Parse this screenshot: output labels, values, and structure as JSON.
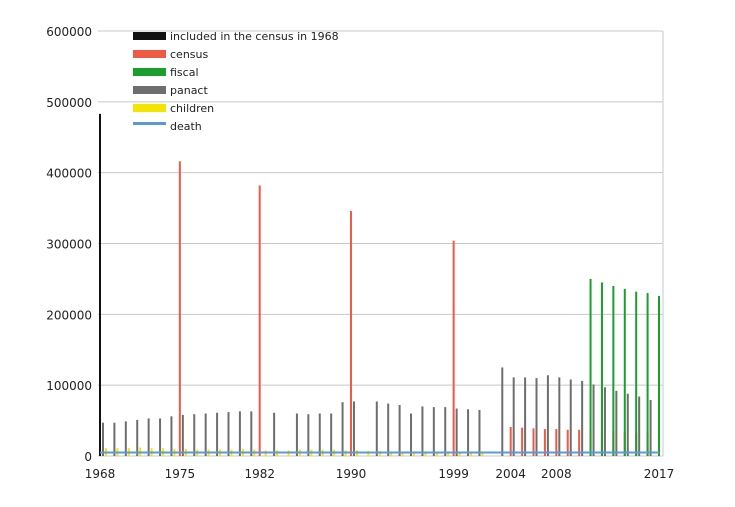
{
  "chart_data": {
    "type": "bar",
    "title": "",
    "xlabel": "",
    "ylabel": "",
    "ylim": [
      0,
      600000
    ],
    "xlim": [
      1968,
      2017
    ],
    "yticks": [
      "0",
      "100000",
      "200000",
      "300000",
      "400000",
      "500000",
      "600000"
    ],
    "xticks": [
      {
        "year": 1968,
        "label": "1968"
      },
      {
        "year": 1975,
        "label": "1975"
      },
      {
        "year": 1982,
        "label": "1982"
      },
      {
        "year": 1990,
        "label": "1990"
      },
      {
        "year": 1999,
        "label": "1999"
      },
      {
        "year": 2004,
        "label": "2004"
      },
      {
        "year": 2008,
        "label": "2008"
      },
      {
        "year": 2017,
        "label": "2017"
      }
    ],
    "grid": true,
    "legend_position": "top-left",
    "series": [
      {
        "name": "included in the census in 1968",
        "color": "#111111",
        "points": [
          [
            1968,
            483000
          ]
        ]
      },
      {
        "name": "census",
        "color": "#f05a45",
        "points": [
          [
            1975,
            416000
          ],
          [
            1982,
            382000
          ],
          [
            1990,
            346000
          ],
          [
            1999,
            304000
          ],
          [
            2004,
            41000
          ],
          [
            2005,
            40000
          ],
          [
            2006,
            39000
          ],
          [
            2007,
            38000
          ],
          [
            2008,
            38000
          ],
          [
            2009,
            37000
          ],
          [
            2010,
            37000
          ],
          [
            2011,
            36000
          ],
          [
            2012,
            35000
          ],
          [
            2013,
            35000
          ],
          [
            2014,
            34000
          ],
          [
            2015,
            33000
          ],
          [
            2016,
            32000
          ],
          [
            2017,
            31000
          ]
        ]
      },
      {
        "name": "fiscal",
        "color": "#1a9e2c",
        "points": [
          [
            2011,
            250000
          ],
          [
            2012,
            245000
          ],
          [
            2013,
            240000
          ],
          [
            2014,
            236000
          ],
          [
            2015,
            232000
          ],
          [
            2016,
            230000
          ],
          [
            2017,
            226000
          ]
        ]
      },
      {
        "name": "panact",
        "color": "#6e6e6e",
        "points": [
          [
            1968,
            47000
          ],
          [
            1969,
            47000
          ],
          [
            1970,
            49000
          ],
          [
            1971,
            51000
          ],
          [
            1972,
            53000
          ],
          [
            1973,
            53000
          ],
          [
            1974,
            56000
          ],
          [
            1975,
            58000
          ],
          [
            1976,
            59000
          ],
          [
            1977,
            60000
          ],
          [
            1978,
            61000
          ],
          [
            1979,
            62000
          ],
          [
            1980,
            63000
          ],
          [
            1981,
            63000
          ],
          [
            1983,
            61000
          ],
          [
            1985,
            60000
          ],
          [
            1986,
            59000
          ],
          [
            1987,
            60000
          ],
          [
            1988,
            60000
          ],
          [
            1989,
            76000
          ],
          [
            1990,
            77000
          ],
          [
            1992,
            77000
          ],
          [
            1993,
            74000
          ],
          [
            1994,
            72000
          ],
          [
            1995,
            60000
          ],
          [
            1996,
            70000
          ],
          [
            1997,
            69000
          ],
          [
            1998,
            69000
          ],
          [
            1999,
            67000
          ],
          [
            2000,
            66000
          ],
          [
            2001,
            65000
          ],
          [
            2003,
            125000
          ],
          [
            2004,
            111000
          ],
          [
            2005,
            111000
          ],
          [
            2006,
            110000
          ],
          [
            2007,
            114000
          ],
          [
            2008,
            111000
          ],
          [
            2009,
            108000
          ],
          [
            2010,
            106000
          ],
          [
            2011,
            101000
          ],
          [
            2012,
            97000
          ],
          [
            2013,
            92000
          ],
          [
            2014,
            88000
          ],
          [
            2015,
            84000
          ],
          [
            2016,
            79000
          ]
        ]
      },
      {
        "name": "children",
        "color": "#f5e400",
        "points": [
          [
            1968,
            11000
          ],
          [
            1969,
            11000
          ],
          [
            1970,
            11000
          ],
          [
            1971,
            12000
          ],
          [
            1972,
            11000
          ],
          [
            1973,
            11000
          ],
          [
            1974,
            10000
          ],
          [
            1975,
            10000
          ],
          [
            1976,
            9000
          ],
          [
            1977,
            9000
          ],
          [
            1978,
            9000
          ],
          [
            1979,
            9000
          ],
          [
            1980,
            10000
          ],
          [
            1981,
            9000
          ],
          [
            1982,
            8000
          ],
          [
            1983,
            8000
          ],
          [
            1984,
            8000
          ],
          [
            1985,
            9000
          ],
          [
            1986,
            9000
          ],
          [
            1987,
            9000
          ],
          [
            1988,
            9000
          ],
          [
            1989,
            8000
          ],
          [
            1990,
            8000
          ],
          [
            1991,
            7000
          ],
          [
            1992,
            7000
          ],
          [
            1993,
            6000
          ],
          [
            1994,
            6000
          ],
          [
            1995,
            6000
          ],
          [
            1996,
            5000
          ],
          [
            1997,
            5000
          ],
          [
            1998,
            5000
          ],
          [
            1999,
            5000
          ],
          [
            2000,
            5000
          ],
          [
            2001,
            5000
          ]
        ]
      },
      {
        "name": "death",
        "color": "#5b9bd5",
        "type": "line",
        "points": [
          [
            1968,
            5000
          ],
          [
            2017,
            5000
          ]
        ]
      }
    ]
  }
}
